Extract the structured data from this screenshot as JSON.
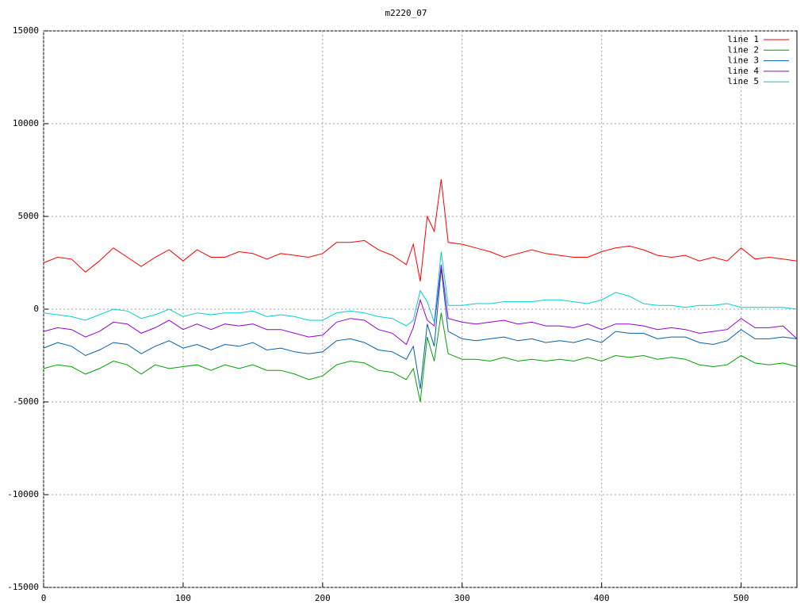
{
  "chart_data": {
    "type": "line",
    "title": "m2220_07",
    "x": [
      0,
      10,
      20,
      30,
      40,
      50,
      60,
      70,
      80,
      90,
      100,
      110,
      120,
      130,
      140,
      150,
      160,
      170,
      180,
      190,
      200,
      210,
      220,
      230,
      240,
      250,
      260,
      265,
      270,
      275,
      280,
      285,
      290,
      300,
      310,
      320,
      330,
      340,
      350,
      360,
      370,
      380,
      390,
      400,
      410,
      420,
      430,
      440,
      450,
      460,
      470,
      480,
      490,
      500,
      510,
      520,
      530,
      540
    ],
    "series": [
      {
        "name": "line 1",
        "color": "#ff0000",
        "values": [
          2500,
          2800,
          2700,
          2000,
          2600,
          3300,
          2800,
          2300,
          2800,
          3200,
          2600,
          3200,
          2800,
          2800,
          3100,
          3000,
          2700,
          3000,
          2900,
          2800,
          3000,
          3600,
          3600,
          3700,
          3200,
          2900,
          2400,
          3500,
          1500,
          5000,
          4200,
          7000,
          3600,
          3500,
          3300,
          3100,
          2800,
          3000,
          3200,
          3000,
          2900,
          2800,
          2800,
          3100,
          3300,
          3400,
          3200,
          2900,
          2800,
          2900,
          2600,
          2800,
          2600,
          3300,
          2700,
          2800,
          2700,
          2600
        ]
      },
      {
        "name": "line 2",
        "color": "#00a000",
        "values": [
          -3200,
          -3000,
          -3100,
          -3500,
          -3200,
          -2800,
          -3000,
          -3500,
          -3000,
          -3200,
          -3100,
          -3000,
          -3300,
          -3000,
          -3200,
          -3000,
          -3300,
          -3300,
          -3500,
          -3800,
          -3600,
          -3000,
          -2800,
          -2900,
          -3300,
          -3400,
          -3800,
          -3200,
          -5000,
          -1500,
          -2800,
          -200,
          -2400,
          -2700,
          -2700,
          -2800,
          -2600,
          -2800,
          -2700,
          -2800,
          -2700,
          -2800,
          -2600,
          -2800,
          -2500,
          -2600,
          -2500,
          -2700,
          -2600,
          -2700,
          -3000,
          -3100,
          -3000,
          -2500,
          -2900,
          -3000,
          -2900,
          -3100
        ]
      },
      {
        "name": "line 3",
        "color": "#0060ad",
        "values": [
          -2100,
          -1800,
          -2000,
          -2500,
          -2200,
          -1800,
          -1900,
          -2400,
          -2000,
          -1700,
          -2100,
          -1900,
          -2200,
          -1900,
          -2000,
          -1800,
          -2200,
          -2100,
          -2300,
          -2400,
          -2300,
          -1700,
          -1600,
          -1800,
          -2200,
          -2300,
          -2700,
          -2000,
          -4300,
          -800,
          -2000,
          2200,
          -1200,
          -1600,
          -1700,
          -1600,
          -1500,
          -1700,
          -1600,
          -1800,
          -1700,
          -1800,
          -1600,
          -1800,
          -1200,
          -1300,
          -1300,
          -1600,
          -1500,
          -1500,
          -1800,
          -1900,
          -1700,
          -1100,
          -1600,
          -1600,
          -1500,
          -1600
        ]
      },
      {
        "name": "line 4",
        "color": "#9400d3",
        "values": [
          -1200,
          -1000,
          -1100,
          -1500,
          -1200,
          -700,
          -800,
          -1300,
          -1000,
          -600,
          -1100,
          -800,
          -1100,
          -800,
          -900,
          -800,
          -1100,
          -1100,
          -1300,
          -1500,
          -1400,
          -700,
          -500,
          -600,
          -1100,
          -1300,
          -1900,
          -1000,
          500,
          -600,
          -900,
          2400,
          -500,
          -700,
          -800,
          -700,
          -600,
          -800,
          -700,
          -900,
          -900,
          -1000,
          -800,
          -1100,
          -800,
          -800,
          -900,
          -1100,
          -1000,
          -1100,
          -1300,
          -1200,
          -1100,
          -500,
          -1000,
          -1000,
          -900,
          -1600
        ]
      },
      {
        "name": "line 5",
        "color": "#00d0d0",
        "values": [
          -200,
          -300,
          -400,
          -600,
          -300,
          0,
          -100,
          -500,
          -300,
          0,
          -400,
          -200,
          -300,
          -200,
          -200,
          -100,
          -400,
          -300,
          -400,
          -600,
          -600,
          -200,
          -100,
          -200,
          -400,
          -500,
          -900,
          -600,
          1000,
          400,
          -700,
          3100,
          200,
          200,
          300,
          300,
          400,
          400,
          400,
          500,
          500,
          400,
          300,
          500,
          900,
          700,
          300,
          200,
          200,
          100,
          200,
          200,
          300,
          100,
          100,
          100,
          100,
          0
        ]
      }
    ],
    "xlim": [
      0,
      540
    ],
    "xticks": [
      0,
      100,
      200,
      300,
      400,
      500
    ],
    "ylim": [
      -15000,
      15000
    ],
    "yticks": [
      -15000,
      -10000,
      -5000,
      0,
      5000,
      10000,
      15000
    ],
    "grid": true,
    "legend": "top-right"
  }
}
